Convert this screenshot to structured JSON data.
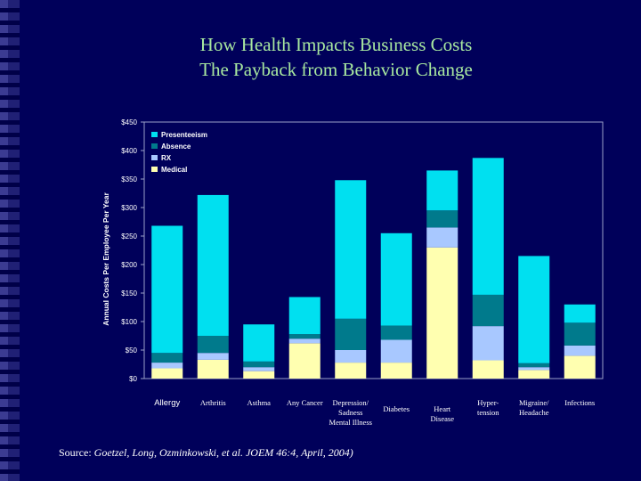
{
  "title_line1": "How Health Impacts Business Costs",
  "title_line2": "The Payback from Behavior Change",
  "source": {
    "prefix": "Source: ",
    "text": "Goetzel, Long, Ozminkowski, et al. JOEM 46:4, April, 2004)"
  },
  "colors": {
    "background": "#00005a",
    "title": "#a8e8a0",
    "presenteeism": "#00e0f0",
    "absence": "#007a8c",
    "rx": "#a8c8ff",
    "medical": "#ffffb0"
  },
  "chart_data": {
    "type": "bar",
    "stacked": true,
    "title": "",
    "ylabel": "Annual Costs Per Employee Per Year",
    "xlabel": "",
    "ylim": [
      0,
      450
    ],
    "yticks": [
      0,
      50,
      100,
      150,
      200,
      250,
      300,
      350,
      400,
      450
    ],
    "ytick_labels": [
      "$0",
      "$50",
      "$100",
      "$150",
      "$200",
      "$250",
      "$300",
      "$350",
      "$400",
      "$450"
    ],
    "legend_position": "top-left",
    "categories": [
      "Allergy",
      "Arthritis",
      "Asthma",
      "Any Cancer",
      "Depression/ Sadness Mental Illness",
      "Diabetes",
      "Heart Disease",
      "Hyper- tension",
      "Migraine/ Headache",
      "Infections"
    ],
    "category_label_lines": [
      [
        "Allergy"
      ],
      [
        "Arthritis"
      ],
      [
        "Asthma"
      ],
      [
        "Any Cancer"
      ],
      [
        "Depression/",
        "Sadness",
        "Mental Illness"
      ],
      [
        "Diabetes"
      ],
      [
        "Heart",
        "Disease"
      ],
      [
        "Hyper-",
        "tension"
      ],
      [
        "Migraine/",
        "Headache"
      ],
      [
        "Infections"
      ]
    ],
    "series": [
      {
        "name": "Medical",
        "values": [
          18,
          33,
          13,
          62,
          28,
          28,
          230,
          32,
          15,
          40
        ]
      },
      {
        "name": "RX",
        "values": [
          10,
          12,
          7,
          8,
          22,
          40,
          35,
          60,
          5,
          18
        ]
      },
      {
        "name": "Absence",
        "values": [
          17,
          30,
          10,
          8,
          55,
          25,
          30,
          55,
          7,
          40
        ]
      },
      {
        "name": "Presenteeism",
        "values": [
          223,
          247,
          65,
          65,
          243,
          162,
          70,
          240,
          188,
          32
        ]
      }
    ],
    "legend_order": [
      "Presenteeism",
      "Absence",
      "RX",
      "Medical"
    ]
  }
}
